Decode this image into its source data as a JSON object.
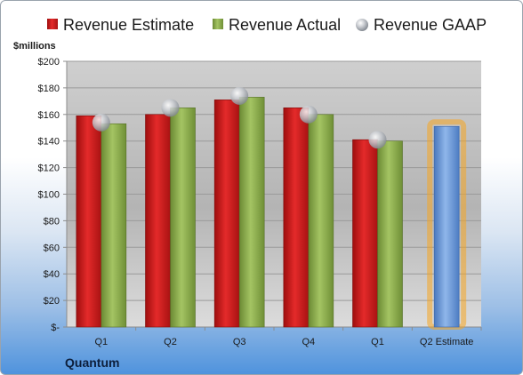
{
  "company": "Quantum",
  "chart_data": {
    "type": "bar",
    "ylabel": "$millions",
    "ylim": [
      0,
      200
    ],
    "yticks": [
      0,
      20,
      40,
      60,
      80,
      100,
      120,
      140,
      160,
      180,
      200
    ],
    "ytick_labels": [
      "$-",
      "$20",
      "$40",
      "$60",
      "$80",
      "$100",
      "$120",
      "$140",
      "$160",
      "$180",
      "$200"
    ],
    "categories": [
      "Q1",
      "Q2",
      "Q3",
      "Q4",
      "Q1",
      "Q2 Estimate"
    ],
    "series": [
      {
        "name": "Revenue Estimate",
        "kind": "bar",
        "color": "#d01c1c",
        "values": [
          159,
          160,
          171,
          165,
          141,
          null
        ]
      },
      {
        "name": "Revenue Actual",
        "kind": "bar",
        "color": "#8aad4a",
        "values": [
          153,
          165,
          173,
          160,
          140,
          151
        ]
      },
      {
        "name": "Revenue GAAP",
        "kind": "marker",
        "color": "#b8bcc2",
        "values": [
          154,
          165,
          174,
          160,
          141,
          null
        ]
      }
    ],
    "highlight": {
      "category_index": 5,
      "bar_color": "#6f9ad6",
      "glow_color": "#f5a623"
    },
    "legend_position": "top",
    "grid": true
  }
}
